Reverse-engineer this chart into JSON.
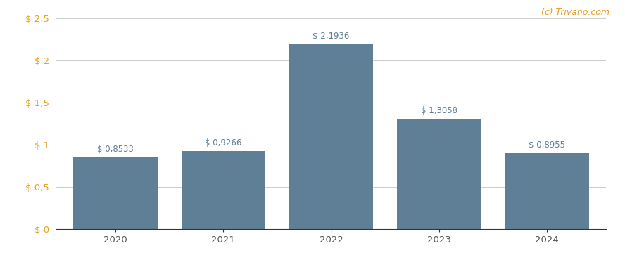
{
  "categories": [
    "2020",
    "2021",
    "2022",
    "2023",
    "2024"
  ],
  "values": [
    0.8533,
    0.9266,
    2.1936,
    1.3058,
    0.8955
  ],
  "labels": [
    "$ 0,8533",
    "$ 0,9266",
    "$ 2,1936",
    "$ 1,3058",
    "$ 0,8955"
  ],
  "bar_color": "#5f7f96",
  "ylim": [
    0,
    2.5
  ],
  "yticks": [
    0,
    0.5,
    1.0,
    1.5,
    2.0,
    2.5
  ],
  "ytick_labels": [
    "$ 0",
    "$ 0,5",
    "$ 1",
    "$ 1,5",
    "$ 2",
    "$ 2,5"
  ],
  "background_color": "#ffffff",
  "grid_color": "#cccccc",
  "watermark": "(c) Trivano.com",
  "watermark_color": "#e8a020",
  "label_color": "#5f7f96",
  "ytick_color": "#e8a020",
  "xtick_color": "#555555",
  "label_fontsize": 8.5,
  "tick_fontsize": 9.5,
  "bar_width": 0.78,
  "spine_color": "#333333"
}
